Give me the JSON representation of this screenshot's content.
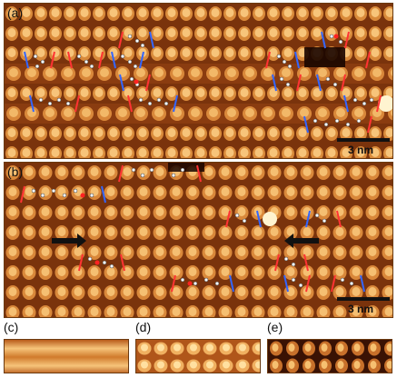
{
  "figure": {
    "panels": [
      {
        "id": "a",
        "label": "(a)",
        "scale_bar": "3 nm"
      },
      {
        "id": "b",
        "label": "(b)",
        "scale_bar": "3 nm"
      },
      {
        "id": "c",
        "label": "(c)"
      },
      {
        "id": "d",
        "label": "(d)"
      },
      {
        "id": "e",
        "label": "(e)"
      }
    ]
  },
  "colors": {
    "substrate_dark": "#6a2a08",
    "substrate_mid": "#d07a2c",
    "substrate_bright": "#ffe0a0",
    "marker_red": "#ff3333",
    "marker_blue": "#3366ff",
    "arrow": "#111111"
  }
}
